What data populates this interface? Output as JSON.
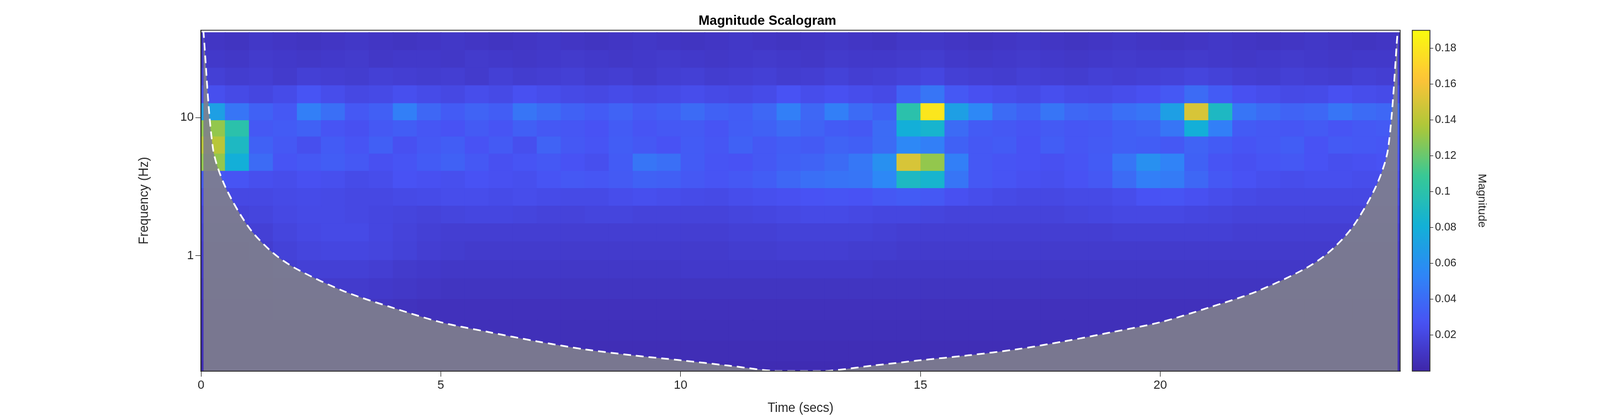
{
  "chart_data": {
    "type": "heatmap",
    "title": "Magnitude Scalogram",
    "x_label": "Time (secs)",
    "y_label": "Frequency (Hz)",
    "log": "y",
    "grid": false,
    "xlim": [
      0,
      25
    ],
    "ylim": [
      0.146,
      43
    ],
    "xticks": [
      0,
      5,
      10,
      15,
      20
    ],
    "yticks": [
      1,
      10
    ],
    "x": [
      0.25,
      0.75,
      1.25,
      1.75,
      2.25,
      2.75,
      3.25,
      3.75,
      4.25,
      4.75,
      5.25,
      5.75,
      6.25,
      6.75,
      7.25,
      7.75,
      8.25,
      8.75,
      9.25,
      9.75,
      10.25,
      10.75,
      11.25,
      11.75,
      12.25,
      12.75,
      13.25,
      13.75,
      14.25,
      14.75,
      15.25,
      15.75,
      16.25,
      16.75,
      17.25,
      17.75,
      18.25,
      18.75,
      19.25,
      19.75,
      20.25,
      20.75,
      21.25,
      21.75,
      22.25,
      22.75,
      23.25,
      23.75,
      24.25,
      24.75
    ],
    "y": [
      0.15,
      0.2,
      0.3,
      0.4,
      0.6,
      0.8,
      1.1,
      1.5,
      2,
      2.7,
      3.6,
      4.8,
      6.4,
      8.5,
      11,
      15,
      20,
      27,
      36
    ],
    "cells": [
      [
        0.004,
        0.004,
        0.004,
        0.004,
        0.004,
        0.004,
        0.004,
        0.004,
        0.004,
        0.004,
        0.004,
        0.004,
        0.004,
        0.004,
        0.004,
        0.004,
        0.004,
        0.004,
        0.004,
        0.004,
        0.004,
        0.004,
        0.004,
        0.004,
        0.004,
        0.004,
        0.004,
        0.004,
        0.004,
        0.004,
        0.004,
        0.004,
        0.004,
        0.004,
        0.004,
        0.004,
        0.004,
        0.004,
        0.004,
        0.004,
        0.004,
        0.004,
        0.004,
        0.004,
        0.004,
        0.004,
        0.004,
        0.004,
        0.004,
        0.004
      ],
      [
        0.005,
        0.005,
        0.005,
        0.005,
        0.005,
        0.005,
        0.005,
        0.005,
        0.005,
        0.005,
        0.005,
        0.005,
        0.005,
        0.005,
        0.005,
        0.005,
        0.005,
        0.005,
        0.005,
        0.005,
        0.005,
        0.005,
        0.005,
        0.005,
        0.005,
        0.005,
        0.005,
        0.005,
        0.005,
        0.005,
        0.005,
        0.005,
        0.005,
        0.005,
        0.005,
        0.005,
        0.005,
        0.005,
        0.005,
        0.005,
        0.005,
        0.005,
        0.005,
        0.005,
        0.005,
        0.005,
        0.005,
        0.005,
        0.005,
        0.005
      ],
      [
        0.006,
        0.006,
        0.006,
        0.006,
        0.006,
        0.006,
        0.006,
        0.006,
        0.006,
        0.006,
        0.006,
        0.006,
        0.006,
        0.006,
        0.006,
        0.006,
        0.006,
        0.006,
        0.006,
        0.006,
        0.006,
        0.006,
        0.006,
        0.006,
        0.006,
        0.006,
        0.006,
        0.006,
        0.006,
        0.006,
        0.006,
        0.006,
        0.006,
        0.006,
        0.006,
        0.006,
        0.006,
        0.006,
        0.006,
        0.006,
        0.006,
        0.006,
        0.006,
        0.006,
        0.006,
        0.006,
        0.006,
        0.006,
        0.006,
        0.006
      ],
      [
        0.007,
        0.007,
        0.007,
        0.008,
        0.009,
        0.009,
        0.009,
        0.009,
        0.008,
        0.007,
        0.007,
        0.007,
        0.007,
        0.007,
        0.007,
        0.007,
        0.007,
        0.007,
        0.007,
        0.007,
        0.007,
        0.007,
        0.007,
        0.007,
        0.007,
        0.007,
        0.007,
        0.007,
        0.007,
        0.007,
        0.007,
        0.007,
        0.007,
        0.007,
        0.007,
        0.007,
        0.007,
        0.007,
        0.007,
        0.007,
        0.007,
        0.007,
        0.007,
        0.007,
        0.007,
        0.007,
        0.007,
        0.007,
        0.007,
        0.007
      ],
      [
        0.009,
        0.009,
        0.01,
        0.011,
        0.013,
        0.013,
        0.013,
        0.012,
        0.011,
        0.01,
        0.009,
        0.009,
        0.009,
        0.009,
        0.009,
        0.009,
        0.009,
        0.009,
        0.009,
        0.009,
        0.009,
        0.009,
        0.009,
        0.009,
        0.009,
        0.009,
        0.009,
        0.009,
        0.009,
        0.009,
        0.009,
        0.009,
        0.009,
        0.009,
        0.009,
        0.009,
        0.009,
        0.009,
        0.009,
        0.009,
        0.009,
        0.009,
        0.009,
        0.009,
        0.009,
        0.009,
        0.009,
        0.009,
        0.009,
        0.009
      ],
      [
        0.011,
        0.011,
        0.012,
        0.014,
        0.016,
        0.016,
        0.016,
        0.015,
        0.013,
        0.012,
        0.011,
        0.011,
        0.011,
        0.011,
        0.011,
        0.011,
        0.011,
        0.011,
        0.011,
        0.011,
        0.012,
        0.012,
        0.012,
        0.012,
        0.012,
        0.012,
        0.012,
        0.012,
        0.011,
        0.011,
        0.011,
        0.011,
        0.011,
        0.011,
        0.011,
        0.011,
        0.011,
        0.011,
        0.011,
        0.011,
        0.011,
        0.011,
        0.011,
        0.011,
        0.011,
        0.011,
        0.011,
        0.011,
        0.011,
        0.011
      ],
      [
        0.013,
        0.013,
        0.014,
        0.017,
        0.019,
        0.02,
        0.02,
        0.019,
        0.017,
        0.015,
        0.014,
        0.013,
        0.013,
        0.013,
        0.013,
        0.013,
        0.013,
        0.013,
        0.013,
        0.013,
        0.013,
        0.013,
        0.014,
        0.014,
        0.015,
        0.015,
        0.015,
        0.014,
        0.014,
        0.013,
        0.013,
        0.013,
        0.013,
        0.013,
        0.013,
        0.013,
        0.013,
        0.013,
        0.013,
        0.013,
        0.013,
        0.013,
        0.013,
        0.013,
        0.013,
        0.013,
        0.013,
        0.013,
        0.013,
        0.013
      ],
      [
        0.015,
        0.015,
        0.016,
        0.019,
        0.021,
        0.022,
        0.022,
        0.02,
        0.018,
        0.016,
        0.015,
        0.015,
        0.015,
        0.015,
        0.015,
        0.015,
        0.015,
        0.015,
        0.015,
        0.015,
        0.015,
        0.015,
        0.016,
        0.016,
        0.017,
        0.017,
        0.017,
        0.017,
        0.016,
        0.015,
        0.015,
        0.015,
        0.015,
        0.015,
        0.015,
        0.015,
        0.015,
        0.015,
        0.016,
        0.016,
        0.016,
        0.016,
        0.016,
        0.015,
        0.015,
        0.015,
        0.015,
        0.015,
        0.015,
        0.015
      ],
      [
        0.018,
        0.018,
        0.019,
        0.021,
        0.022,
        0.022,
        0.021,
        0.02,
        0.019,
        0.018,
        0.019,
        0.02,
        0.02,
        0.019,
        0.018,
        0.018,
        0.019,
        0.019,
        0.018,
        0.018,
        0.018,
        0.018,
        0.019,
        0.02,
        0.021,
        0.022,
        0.022,
        0.021,
        0.02,
        0.02,
        0.019,
        0.018,
        0.018,
        0.018,
        0.018,
        0.018,
        0.019,
        0.02,
        0.021,
        0.021,
        0.021,
        0.02,
        0.019,
        0.018,
        0.018,
        0.018,
        0.018,
        0.018,
        0.018,
        0.018
      ],
      [
        0.022,
        0.021,
        0.021,
        0.022,
        0.023,
        0.022,
        0.021,
        0.021,
        0.022,
        0.023,
        0.024,
        0.024,
        0.023,
        0.024,
        0.023,
        0.022,
        0.022,
        0.024,
        0.025,
        0.024,
        0.023,
        0.022,
        0.024,
        0.025,
        0.026,
        0.027,
        0.028,
        0.027,
        0.03,
        0.032,
        0.03,
        0.026,
        0.024,
        0.022,
        0.021,
        0.021,
        0.022,
        0.022,
        0.024,
        0.027,
        0.028,
        0.026,
        0.024,
        0.022,
        0.021,
        0.021,
        0.021,
        0.021,
        0.021,
        0.021
      ],
      [
        0.03,
        0.028,
        0.025,
        0.024,
        0.026,
        0.025,
        0.023,
        0.024,
        0.027,
        0.026,
        0.025,
        0.027,
        0.026,
        0.025,
        0.028,
        0.03,
        0.029,
        0.031,
        0.035,
        0.034,
        0.03,
        0.028,
        0.03,
        0.033,
        0.038,
        0.042,
        0.044,
        0.045,
        0.055,
        0.09,
        0.085,
        0.045,
        0.03,
        0.028,
        0.026,
        0.025,
        0.027,
        0.03,
        0.04,
        0.05,
        0.048,
        0.038,
        0.03,
        0.027,
        0.025,
        0.024,
        0.025,
        0.025,
        0.024,
        0.024
      ],
      [
        0.13,
        0.08,
        0.04,
        0.028,
        0.03,
        0.033,
        0.03,
        0.026,
        0.028,
        0.032,
        0.035,
        0.03,
        0.026,
        0.028,
        0.03,
        0.027,
        0.025,
        0.032,
        0.045,
        0.042,
        0.032,
        0.028,
        0.027,
        0.03,
        0.034,
        0.036,
        0.04,
        0.046,
        0.06,
        0.15,
        0.13,
        0.05,
        0.03,
        0.028,
        0.027,
        0.026,
        0.028,
        0.032,
        0.045,
        0.06,
        0.052,
        0.035,
        0.028,
        0.026,
        0.028,
        0.03,
        0.027,
        0.025,
        0.026,
        0.027
      ],
      [
        0.14,
        0.09,
        0.035,
        0.03,
        0.025,
        0.032,
        0.028,
        0.034,
        0.026,
        0.03,
        0.033,
        0.027,
        0.031,
        0.025,
        0.036,
        0.03,
        0.028,
        0.033,
        0.03,
        0.027,
        0.032,
        0.029,
        0.035,
        0.03,
        0.033,
        0.031,
        0.036,
        0.034,
        0.04,
        0.055,
        0.05,
        0.035,
        0.03,
        0.032,
        0.027,
        0.033,
        0.029,
        0.031,
        0.034,
        0.033,
        0.03,
        0.036,
        0.032,
        0.028,
        0.03,
        0.033,
        0.027,
        0.031,
        0.03,
        0.029
      ],
      [
        0.13,
        0.1,
        0.03,
        0.032,
        0.035,
        0.028,
        0.026,
        0.03,
        0.033,
        0.029,
        0.027,
        0.031,
        0.028,
        0.034,
        0.03,
        0.029,
        0.027,
        0.032,
        0.028,
        0.03,
        0.031,
        0.028,
        0.033,
        0.035,
        0.04,
        0.036,
        0.032,
        0.03,
        0.04,
        0.08,
        0.085,
        0.04,
        0.032,
        0.03,
        0.028,
        0.031,
        0.029,
        0.03,
        0.034,
        0.036,
        0.045,
        0.08,
        0.05,
        0.032,
        0.03,
        0.029,
        0.031,
        0.028,
        0.03,
        0.031
      ],
      [
        0.07,
        0.045,
        0.035,
        0.03,
        0.05,
        0.042,
        0.03,
        0.034,
        0.05,
        0.038,
        0.032,
        0.036,
        0.033,
        0.045,
        0.04,
        0.035,
        0.032,
        0.036,
        0.031,
        0.034,
        0.04,
        0.035,
        0.033,
        0.038,
        0.05,
        0.038,
        0.05,
        0.04,
        0.035,
        0.1,
        0.18,
        0.07,
        0.055,
        0.04,
        0.035,
        0.045,
        0.038,
        0.036,
        0.042,
        0.045,
        0.07,
        0.15,
        0.09,
        0.045,
        0.04,
        0.036,
        0.038,
        0.045,
        0.04,
        0.038
      ],
      [
        0.025,
        0.022,
        0.02,
        0.023,
        0.028,
        0.024,
        0.021,
        0.022,
        0.025,
        0.023,
        0.021,
        0.024,
        0.022,
        0.026,
        0.024,
        0.022,
        0.021,
        0.023,
        0.021,
        0.022,
        0.024,
        0.022,
        0.021,
        0.023,
        0.027,
        0.024,
        0.026,
        0.024,
        0.022,
        0.035,
        0.045,
        0.03,
        0.026,
        0.024,
        0.022,
        0.025,
        0.023,
        0.022,
        0.024,
        0.026,
        0.03,
        0.04,
        0.032,
        0.026,
        0.024,
        0.022,
        0.023,
        0.026,
        0.024,
        0.023
      ],
      [
        0.016,
        0.014,
        0.015,
        0.013,
        0.016,
        0.015,
        0.014,
        0.016,
        0.015,
        0.014,
        0.015,
        0.013,
        0.016,
        0.014,
        0.015,
        0.016,
        0.014,
        0.015,
        0.013,
        0.015,
        0.016,
        0.014,
        0.015,
        0.016,
        0.014,
        0.015,
        0.017,
        0.015,
        0.016,
        0.018,
        0.02,
        0.016,
        0.015,
        0.014,
        0.016,
        0.015,
        0.014,
        0.016,
        0.015,
        0.016,
        0.017,
        0.019,
        0.017,
        0.015,
        0.014,
        0.016,
        0.015,
        0.014,
        0.016,
        0.015
      ],
      [
        0.012,
        0.011,
        0.013,
        0.012,
        0.011,
        0.012,
        0.013,
        0.011,
        0.012,
        0.012,
        0.011,
        0.013,
        0.012,
        0.011,
        0.012,
        0.013,
        0.012,
        0.011,
        0.012,
        0.013,
        0.012,
        0.011,
        0.012,
        0.013,
        0.012,
        0.011,
        0.013,
        0.012,
        0.012,
        0.013,
        0.014,
        0.012,
        0.011,
        0.012,
        0.013,
        0.012,
        0.011,
        0.012,
        0.013,
        0.012,
        0.012,
        0.013,
        0.012,
        0.011,
        0.012,
        0.013,
        0.012,
        0.011,
        0.012,
        0.012
      ],
      [
        0.01,
        0.009,
        0.011,
        0.01,
        0.009,
        0.01,
        0.011,
        0.01,
        0.009,
        0.01,
        0.011,
        0.01,
        0.009,
        0.01,
        0.011,
        0.01,
        0.009,
        0.01,
        0.011,
        0.01,
        0.009,
        0.01,
        0.011,
        0.01,
        0.009,
        0.01,
        0.011,
        0.01,
        0.009,
        0.011,
        0.011,
        0.01,
        0.009,
        0.01,
        0.011,
        0.01,
        0.009,
        0.01,
        0.011,
        0.01,
        0.009,
        0.01,
        0.011,
        0.01,
        0.009,
        0.01,
        0.011,
        0.01,
        0.009,
        0.01
      ]
    ],
    "coi": {
      "x": [
        0.05,
        0.25,
        0.5,
        1,
        1.5,
        2,
        3,
        4,
        5,
        6,
        7,
        8,
        9,
        10,
        11,
        12,
        13,
        14,
        15,
        16,
        17,
        18,
        19,
        20,
        21,
        22,
        23,
        23.5,
        24,
        24.5,
        24.75,
        24.95
      ],
      "y": [
        43,
        6,
        3.2,
        1.6,
        1.05,
        0.8,
        0.55,
        0.42,
        0.33,
        0.28,
        0.24,
        0.21,
        0.19,
        0.175,
        0.16,
        0.146,
        0.146,
        0.16,
        0.175,
        0.19,
        0.21,
        0.24,
        0.28,
        0.33,
        0.42,
        0.55,
        0.8,
        1.05,
        1.6,
        3.2,
        6,
        43
      ]
    },
    "colorbar": {
      "label": "Magnitude",
      "lim": [
        0,
        0.19
      ],
      "ticks": [
        0.02,
        0.04,
        0.06,
        0.08,
        0.1,
        0.12,
        0.14,
        0.16,
        0.18
      ]
    }
  }
}
